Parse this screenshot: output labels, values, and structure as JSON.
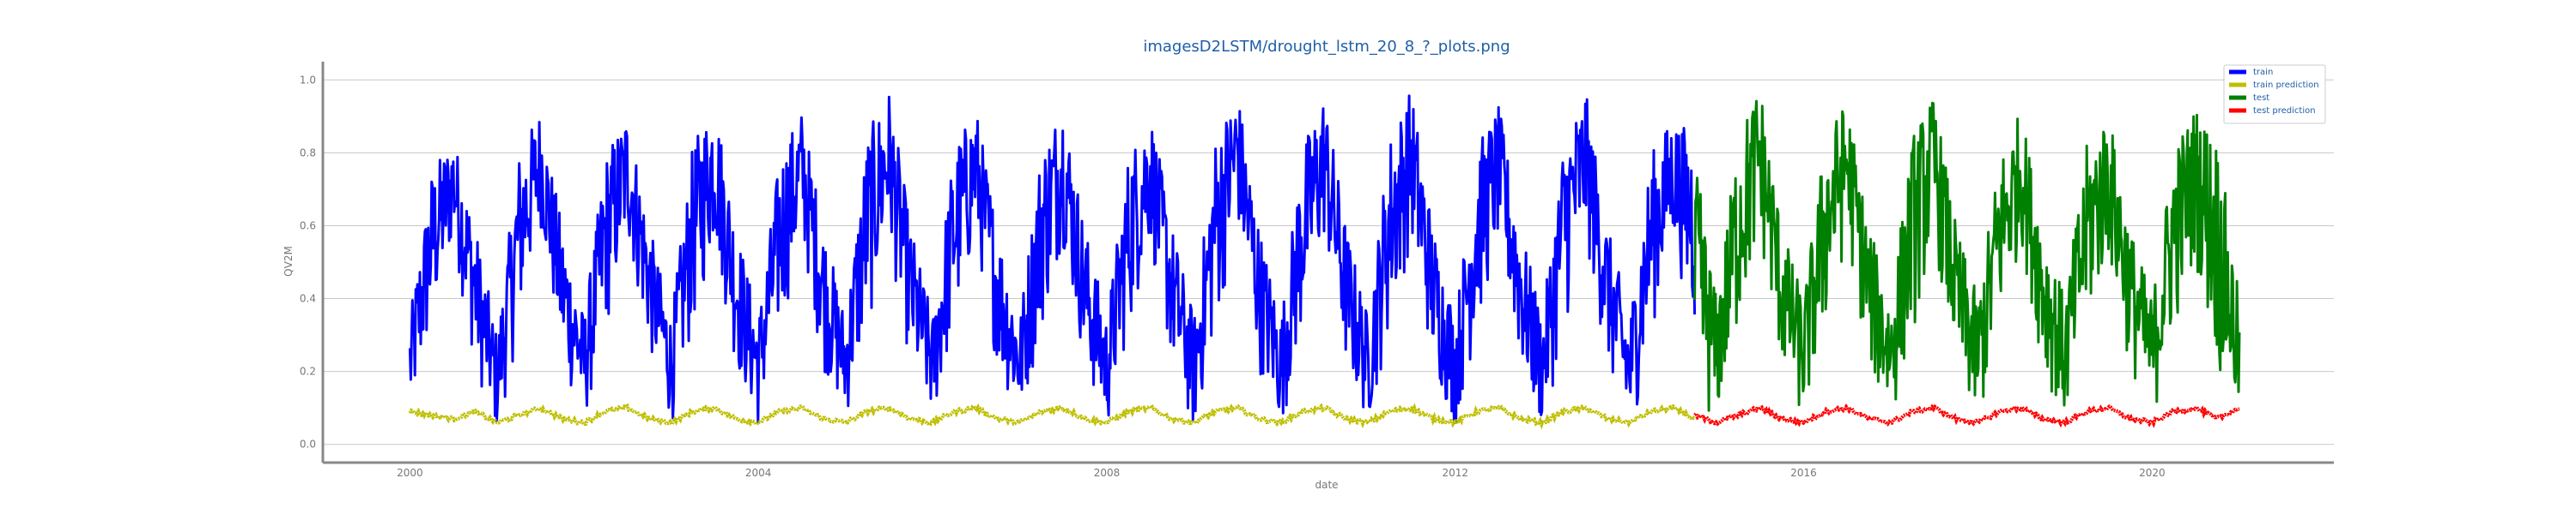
{
  "chart_data": {
    "type": "line",
    "title": "imagesD2LSTM/drought_lstm_20_8_?_plots.png",
    "xlabel": "date",
    "ylabel": "QV2M",
    "xlim": [
      "1999-01-01",
      "2022-02-01"
    ],
    "ylim": [
      -0.05,
      1.05
    ],
    "xticks": [
      "2000",
      "2004",
      "2008",
      "2012",
      "2016",
      "2020"
    ],
    "yticks": [
      "0.0",
      "0.2",
      "0.4",
      "0.6",
      "0.8",
      "1.0"
    ],
    "grid": "horizontal",
    "legend_position": "top-right",
    "series": [
      {
        "name": "train",
        "color": "#0000ff",
        "x": [
          "2000-01",
          "2000-04",
          "2000-07",
          "2000-10",
          "2001-01",
          "2001-04",
          "2001-07",
          "2001-10",
          "2002-01",
          "2002-04",
          "2002-07",
          "2002-10",
          "2003-01",
          "2003-04",
          "2003-07",
          "2003-10",
          "2004-01",
          "2004-04",
          "2004-07",
          "2004-10",
          "2005-01",
          "2005-04",
          "2005-07",
          "2005-10",
          "2006-01",
          "2006-04",
          "2006-07",
          "2006-10",
          "2007-01",
          "2007-04",
          "2007-07",
          "2007-10",
          "2008-01",
          "2008-04",
          "2008-07",
          "2008-10",
          "2009-01",
          "2009-04",
          "2009-07",
          "2009-10",
          "2010-01",
          "2010-04",
          "2010-07",
          "2010-10",
          "2011-01",
          "2011-04",
          "2011-07",
          "2011-10",
          "2012-01",
          "2012-04",
          "2012-07",
          "2012-10",
          "2013-01",
          "2013-04",
          "2013-07",
          "2013-10",
          "2014-01",
          "2014-04",
          "2014-07",
          "2014-10"
        ],
        "low": [
          0.05,
          0.3,
          0.55,
          0.2,
          0.02,
          0.3,
          0.6,
          0.2,
          0.05,
          0.3,
          0.55,
          0.25,
          0.05,
          0.3,
          0.55,
          0.2,
          0.04,
          0.3,
          0.55,
          0.2,
          0.06,
          0.3,
          0.55,
          0.2,
          0.05,
          0.3,
          0.55,
          0.2,
          0.05,
          0.3,
          0.55,
          0.2,
          0.03,
          0.3,
          0.55,
          0.2,
          0.02,
          0.3,
          0.6,
          0.2,
          0.04,
          0.3,
          0.55,
          0.2,
          0.05,
          0.3,
          0.55,
          0.2,
          0.04,
          0.3,
          0.55,
          0.2,
          0.03,
          0.3,
          0.55,
          0.2,
          0.0,
          0.3,
          0.55,
          0.3
        ],
        "high": [
          0.35,
          0.75,
          0.85,
          0.6,
          0.3,
          0.8,
          0.92,
          0.6,
          0.35,
          0.8,
          0.92,
          0.6,
          0.35,
          0.82,
          0.96,
          0.6,
          0.35,
          0.8,
          0.92,
          0.6,
          0.35,
          0.85,
          0.98,
          0.6,
          0.35,
          0.82,
          0.93,
          0.6,
          0.35,
          0.82,
          0.95,
          0.6,
          0.35,
          0.8,
          0.92,
          0.6,
          0.35,
          0.85,
          0.98,
          0.6,
          0.35,
          0.82,
          0.97,
          0.6,
          0.35,
          0.85,
          0.98,
          0.6,
          0.35,
          0.82,
          0.93,
          0.6,
          0.35,
          0.85,
          0.97,
          0.6,
          0.35,
          0.8,
          0.9,
          0.85
        ]
      },
      {
        "name": "train prediction",
        "color": "#bfbf00",
        "x": [
          "2000-01",
          "2000-04",
          "2000-07",
          "2000-10",
          "2001-01",
          "2001-04",
          "2001-07",
          "2001-10",
          "2002-01",
          "2002-04",
          "2002-07",
          "2002-10",
          "2003-01",
          "2003-04",
          "2003-07",
          "2003-10",
          "2004-01",
          "2004-04",
          "2004-07",
          "2004-10",
          "2005-01",
          "2005-04",
          "2005-07",
          "2005-10",
          "2006-01",
          "2006-04",
          "2006-07",
          "2006-10",
          "2007-01",
          "2007-04",
          "2007-07",
          "2007-10",
          "2008-01",
          "2008-04",
          "2008-07",
          "2008-10",
          "2009-01",
          "2009-04",
          "2009-07",
          "2009-10",
          "2010-01",
          "2010-04",
          "2010-07",
          "2010-10",
          "2011-01",
          "2011-04",
          "2011-07",
          "2011-10",
          "2012-01",
          "2012-04",
          "2012-07",
          "2012-10",
          "2013-01",
          "2013-04",
          "2013-07",
          "2013-10",
          "2014-01",
          "2014-04",
          "2014-07",
          "2014-10"
        ],
        "values": [
          0.09,
          0.08,
          0.07,
          0.09,
          0.06,
          0.08,
          0.1,
          0.07,
          0.06,
          0.09,
          0.1,
          0.07,
          0.06,
          0.09,
          0.1,
          0.07,
          0.06,
          0.09,
          0.1,
          0.07,
          0.06,
          0.09,
          0.1,
          0.07,
          0.06,
          0.09,
          0.1,
          0.07,
          0.06,
          0.09,
          0.1,
          0.07,
          0.06,
          0.09,
          0.1,
          0.07,
          0.06,
          0.09,
          0.1,
          0.07,
          0.06,
          0.09,
          0.1,
          0.07,
          0.06,
          0.09,
          0.1,
          0.07,
          0.06,
          0.09,
          0.1,
          0.07,
          0.06,
          0.09,
          0.1,
          0.07,
          0.06,
          0.09,
          0.1,
          0.07
        ]
      },
      {
        "name": "test",
        "color": "#008000",
        "x": [
          "2014-10",
          "2015-01",
          "2015-04",
          "2015-07",
          "2015-10",
          "2016-01",
          "2016-04",
          "2016-07",
          "2016-10",
          "2017-01",
          "2017-04",
          "2017-07",
          "2017-10",
          "2018-01",
          "2018-04",
          "2018-07",
          "2018-10",
          "2019-01",
          "2019-04",
          "2019-07",
          "2019-10",
          "2020-01",
          "2020-04",
          "2020-07",
          "2020-10",
          "2021-01"
        ],
        "low": [
          0.1,
          0.05,
          0.3,
          0.55,
          0.2,
          0.05,
          0.3,
          0.55,
          0.2,
          0.05,
          0.3,
          0.55,
          0.2,
          0.03,
          0.3,
          0.55,
          0.2,
          0.05,
          0.3,
          0.5,
          0.2,
          0.05,
          0.3,
          0.5,
          0.2,
          0.05
        ],
        "high": [
          0.8,
          0.4,
          0.85,
          1.0,
          0.6,
          0.4,
          0.85,
          0.95,
          0.6,
          0.4,
          0.85,
          0.96,
          0.6,
          0.4,
          0.8,
          0.92,
          0.6,
          0.4,
          0.82,
          0.92,
          0.6,
          0.4,
          0.82,
          0.93,
          0.85,
          0.4
        ]
      },
      {
        "name": "test prediction",
        "color": "#ff0000",
        "x": [
          "2014-10",
          "2015-01",
          "2015-04",
          "2015-07",
          "2015-10",
          "2016-01",
          "2016-04",
          "2016-07",
          "2016-10",
          "2017-01",
          "2017-04",
          "2017-07",
          "2017-10",
          "2018-01",
          "2018-04",
          "2018-07",
          "2018-10",
          "2019-01",
          "2019-04",
          "2019-07",
          "2019-10",
          "2020-01",
          "2020-04",
          "2020-07",
          "2020-10",
          "2021-01"
        ],
        "values": [
          0.08,
          0.06,
          0.08,
          0.1,
          0.07,
          0.06,
          0.09,
          0.1,
          0.07,
          0.06,
          0.09,
          0.1,
          0.07,
          0.06,
          0.09,
          0.1,
          0.07,
          0.06,
          0.09,
          0.1,
          0.07,
          0.06,
          0.09,
          0.1,
          0.07,
          0.1
        ]
      }
    ]
  }
}
